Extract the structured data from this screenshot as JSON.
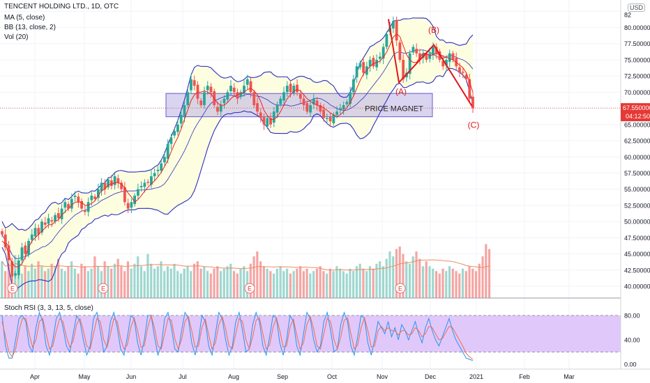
{
  "header": {
    "title": "TENCENT HOLDING LTD., 1D, OTC",
    "indicators": [
      "MA (5, close)",
      "BB (13, close, 2)",
      "Vol (20)"
    ],
    "currency": "USD"
  },
  "osc_title": "Stoch RSI (3, 3, 13, 5, close)",
  "annotations": {
    "a_label": "(A)",
    "b_label": "(B)",
    "c_label": "(C)",
    "zone_label": "PRICE MAGNET",
    "earnings_marker": "E"
  },
  "price_badge": {
    "value": "67.550000",
    "countdown": "04:12:50"
  },
  "colors": {
    "up": "#26a69a",
    "down": "#ef5350",
    "ma": "#ef1f1f",
    "bb": "#2a2ec1",
    "bb_fill": "#fdfde0",
    "zone_fill": "#b9b3e6",
    "stoch_fill": "#e1c8fb",
    "k_line": "#2196f3",
    "d_line": "#ef6c4c",
    "vol_up": "#9fd7cf",
    "vol_down": "#f5a5a3",
    "vol_ma": "#f08a5d",
    "badge": "#e53935"
  },
  "chart_data": [
    {
      "type": "candlestick",
      "title": "TENCENT HOLDING LTD., 1D, OTC",
      "x_ticks": [
        "Apr",
        "May",
        "Jun",
        "Jul",
        "Aug",
        "Sep",
        "Oct",
        "Nov",
        "Dec",
        "2021",
        "Feb",
        "Mar"
      ],
      "y_ticks": [
        "40.000000",
        "42.500000",
        "45.000000",
        "47.500000",
        "50.000000",
        "52.500000",
        "55.000000",
        "57.500000",
        "60.000000",
        "62.500000",
        "65.000000",
        "67.500000",
        "70.000000",
        "72.500000",
        "75.000000",
        "77.500000",
        "80.000000",
        "82"
      ],
      "ylim": [
        39,
        82.5
      ],
      "last_price": 67.55,
      "close_series": [
        48,
        46,
        44,
        41.5,
        42,
        44,
        46,
        45,
        47,
        48,
        49,
        48,
        50,
        49.5,
        50.5,
        50,
        51,
        50.5,
        52,
        53,
        52,
        53.5,
        54,
        53,
        52,
        51.5,
        53,
        54,
        53.5,
        55,
        56,
        55,
        56.5,
        55.5,
        57,
        56,
        55,
        53,
        52,
        53,
        54,
        55,
        55.5,
        56,
        56,
        57,
        57.5,
        58,
        59,
        60,
        62,
        63,
        64,
        65,
        66.5,
        68,
        70,
        72,
        71,
        69,
        68,
        70,
        71,
        70,
        68,
        67,
        68,
        69,
        70,
        71,
        70,
        69,
        70,
        71,
        72,
        70,
        68,
        67,
        66,
        65,
        66,
        65,
        67,
        68,
        69,
        70,
        71,
        70,
        71,
        70,
        69,
        68,
        67,
        68,
        69,
        68,
        67,
        66,
        66,
        65.5,
        66.5,
        67,
        67.5,
        68,
        68.5,
        70,
        72,
        74,
        74.5,
        73,
        74,
        75,
        74,
        75,
        75.5,
        77,
        79,
        80,
        81,
        78,
        75,
        72,
        73,
        76,
        77,
        76,
        75,
        76,
        75,
        76,
        77,
        76,
        75,
        74,
        75,
        76,
        75,
        74,
        73,
        73,
        72,
        69,
        67.5
      ],
      "ma5_series": [
        47,
        46.5,
        45,
        43.5,
        43,
        43,
        43.5,
        44.5,
        46,
        47,
        47.5,
        48,
        48.5,
        49,
        49.5,
        49.5,
        50,
        50.3,
        51,
        51.5,
        52,
        52.5,
        53,
        53,
        53,
        52.5,
        52.5,
        52.8,
        53.2,
        54,
        54.8,
        55,
        55.7,
        55.8,
        56,
        56,
        55.8,
        55.2,
        54.4,
        53.8,
        53,
        53.4,
        54,
        54.7,
        55.3,
        55.8,
        56.3,
        56.9,
        57.6,
        58.5,
        59.5,
        60.8,
        62,
        63,
        64.3,
        65.8,
        67.2,
        68.7,
        69.6,
        70,
        70,
        70.2,
        70,
        69.8,
        69,
        68.3,
        68,
        68,
        68.4,
        69,
        69.4,
        69.6,
        69.8,
        70,
        70.4,
        70.6,
        70.2,
        69.6,
        68.6,
        67.2,
        66.4,
        65.8,
        65.8,
        66.2,
        67,
        68,
        69,
        69.6,
        70.2,
        70.4,
        70.2,
        69.6,
        69,
        68.6,
        68.2,
        68,
        67.8,
        67.6,
        67.2,
        66.8,
        66.5,
        66.2,
        66.5,
        67,
        67.6,
        68.4,
        69.4,
        70.6,
        71.8,
        72.8,
        73.4,
        74,
        74.4,
        74.6,
        74.8,
        75.4,
        76.2,
        77.3,
        78.5,
        79,
        78.6,
        77.2,
        75.8,
        75,
        74.6,
        74.6,
        75.4,
        76,
        76,
        75.6,
        75.8,
        76,
        75.8,
        75.6,
        75.4,
        75.2,
        75,
        74.6,
        74.2,
        73.8,
        73,
        71.6,
        70
      ]
    },
    {
      "type": "bar",
      "name": "Vol (20)",
      "values": [
        30,
        22,
        28,
        26,
        35,
        24,
        20,
        26,
        22,
        28,
        24,
        30,
        26,
        22,
        24,
        28,
        26,
        32,
        24,
        22,
        26,
        30,
        24,
        20,
        28,
        26,
        22,
        24,
        34,
        26,
        22,
        30,
        26,
        24,
        28,
        32,
        26,
        22,
        30,
        24,
        28,
        34,
        26,
        22,
        36,
        28,
        24,
        26,
        30,
        22,
        26,
        24,
        28,
        22,
        20,
        24,
        26,
        22,
        28,
        30,
        24,
        26,
        22,
        20,
        24,
        26,
        22,
        24,
        26,
        28,
        22,
        20,
        24,
        26,
        22,
        28,
        34,
        38,
        30,
        26,
        24,
        22,
        20,
        24,
        26,
        22,
        24,
        20,
        22,
        24,
        26,
        22,
        24,
        20,
        22,
        24,
        26,
        22,
        20,
        24,
        22,
        26,
        24,
        22,
        20,
        24,
        22,
        26,
        28,
        24,
        22,
        26,
        24,
        28,
        30,
        26,
        32,
        38,
        34,
        40,
        42,
        36,
        30,
        28,
        34,
        38,
        32,
        26,
        30,
        26,
        24,
        22,
        20,
        24,
        22,
        26,
        24,
        22,
        20,
        24,
        22,
        26,
        24,
        22,
        28,
        34,
        44,
        40
      ]
    },
    {
      "type": "line",
      "title": "Stoch RSI (3, 3, 13, 5, close)",
      "y_ticks": [
        "80.00",
        "40.00",
        "0.00"
      ],
      "ylim": [
        0,
        100
      ],
      "bands": [
        20,
        80
      ],
      "k_series": [
        80,
        30,
        10,
        10,
        40,
        75,
        80,
        70,
        30,
        20,
        60,
        85,
        70,
        30,
        15,
        40,
        75,
        85,
        60,
        30,
        20,
        50,
        80,
        70,
        40,
        15,
        30,
        75,
        85,
        55,
        20,
        30,
        70,
        85,
        60,
        25,
        15,
        45,
        80,
        75,
        35,
        15,
        40,
        80,
        80,
        45,
        15,
        30,
        75,
        85,
        60,
        25,
        20,
        55,
        85,
        75,
        35,
        15,
        40,
        80,
        70,
        30,
        15,
        50,
        85,
        75,
        40,
        15,
        30,
        70,
        85,
        55,
        20,
        25,
        65,
        85,
        70,
        30,
        15,
        45,
        80,
        75,
        35,
        15,
        40,
        80,
        70,
        30,
        15,
        50,
        85,
        75,
        40,
        20,
        30,
        70,
        85,
        55,
        20,
        25,
        65,
        85,
        70,
        30,
        15,
        45,
        80,
        75,
        35,
        15,
        40,
        70,
        60,
        50,
        70,
        45,
        60,
        40,
        65,
        55,
        40,
        55,
        70,
        50,
        35,
        60,
        75,
        55,
        40,
        30,
        45,
        60,
        75,
        55,
        40,
        30,
        20,
        10,
        8,
        6
      ],
      "d_series": [
        70,
        45,
        20,
        12,
        25,
        55,
        75,
        75,
        50,
        28,
        40,
        70,
        75,
        50,
        25,
        30,
        55,
        75,
        70,
        45,
        28,
        38,
        65,
        75,
        55,
        30,
        25,
        50,
        75,
        70,
        40,
        28,
        50,
        75,
        70,
        42,
        25,
        32,
        60,
        76,
        55,
        28,
        30,
        60,
        80,
        60,
        30,
        25,
        50,
        75,
        72,
        42,
        25,
        40,
        70,
        78,
        55,
        28,
        30,
        60,
        74,
        48,
        25,
        35,
        65,
        78,
        58,
        30,
        25,
        50,
        75,
        70,
        40,
        25,
        45,
        72,
        76,
        50,
        25,
        32,
        60,
        76,
        55,
        28,
        30,
        60,
        74,
        48,
        25,
        35,
        65,
        78,
        58,
        30,
        25,
        50,
        75,
        70,
        40,
        25,
        45,
        72,
        76,
        50,
        25,
        32,
        60,
        76,
        55,
        28,
        30,
        55,
        62,
        55,
        60,
        55,
        55,
        48,
        55,
        55,
        48,
        50,
        60,
        55,
        45,
        50,
        62,
        60,
        50,
        40,
        42,
        52,
        62,
        60,
        50,
        40,
        30,
        18,
        12,
        8
      ]
    }
  ]
}
